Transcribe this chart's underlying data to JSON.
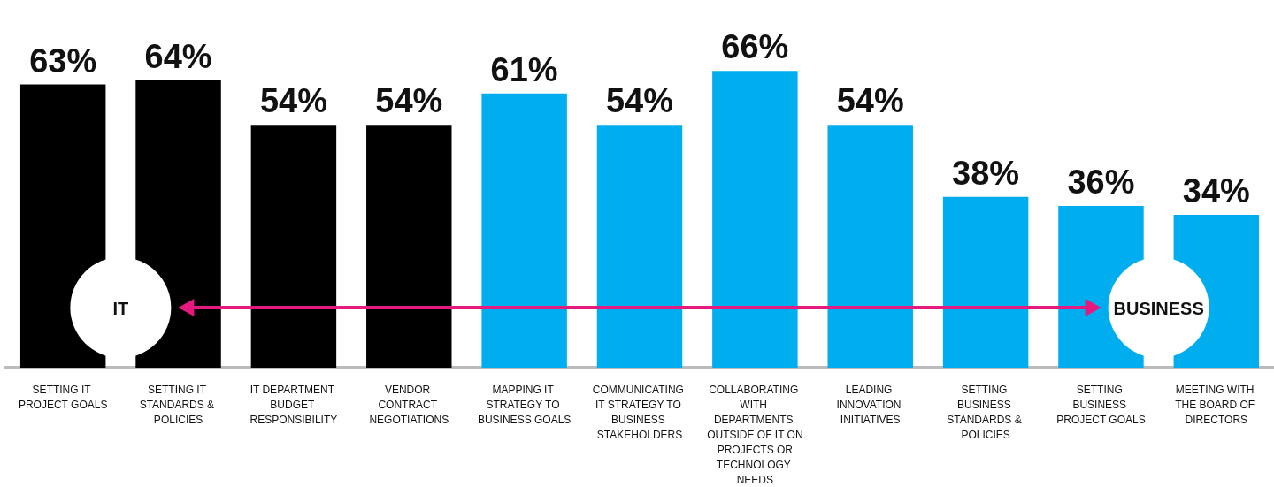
{
  "chart_data": {
    "type": "bar",
    "categories": [
      "SETTING IT PROJECT GOALS",
      "SETTING IT STANDARDS & POLICIES",
      "IT DEPARTMENT BUDGET RESPONSIBILITY",
      "VENDOR CONTRACT NEGOTIATIONS",
      "MAPPING IT STRATEGY TO BUSINESS GOALS",
      "COMMUNICATING IT STRATEGY TO BUSINESS STAKEHOLDERS",
      "COLLABORATING WITH DEPARTMENTS OUTSIDE OF IT ON PROJECTS OR TECHNOLOGY NEEDS",
      "LEADING INNOVATION INITIATIVES",
      "SETTING BUSINESS STANDARDS & POLICIES",
      "SETTING BUSINESS PROJECT GOALS",
      "MEETING WITH THE BOARD OF DIRECTORS"
    ],
    "values": [
      63,
      64,
      54,
      54,
      61,
      54,
      66,
      54,
      38,
      36,
      34
    ],
    "value_labels": [
      "63%",
      "64%",
      "54%",
      "54%",
      "61%",
      "54%",
      "66%",
      "54%",
      "38%",
      "36%",
      "34%"
    ],
    "colors": [
      "#000000",
      "#000000",
      "#000000",
      "#000000",
      "#00aeef",
      "#00aeef",
      "#00aeef",
      "#00aeef",
      "#00aeef",
      "#00aeef",
      "#00aeef"
    ],
    "annotations": [
      "IT",
      "BUSINESS"
    ]
  }
}
